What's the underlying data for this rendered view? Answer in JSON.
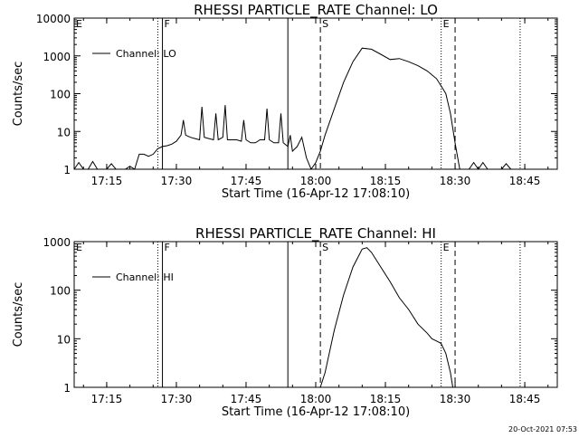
{
  "stamp": "20-Oct-2021 07:53",
  "colors": {
    "background": "#ffffff",
    "ink": "#000000"
  },
  "chart_data": [
    {
      "type": "line",
      "title": "RHESSI PARTICLE_RATE Channel: LO",
      "xlabel": "Start Time (16-Apr-12 17:08:10)",
      "ylabel": "Counts/sec",
      "y_scale": "log",
      "xlim": [
        "17:08",
        "18:52"
      ],
      "ylim": [
        1,
        10000
      ],
      "x_ticks": [
        "17:15",
        "17:30",
        "17:45",
        "18:00",
        "18:15",
        "18:30",
        "18:45"
      ],
      "y_ticks": [
        "1",
        "10",
        "100",
        "1000",
        "10000"
      ],
      "grid": false,
      "legend": {
        "position": "top-left",
        "entries": [
          "Channel: LO"
        ]
      },
      "markers": [
        {
          "label": "E",
          "time": "17:08",
          "style": "solid"
        },
        {
          "label": "F",
          "time": "17:27",
          "style": "solid"
        },
        {
          "label": "",
          "time": "17:26",
          "style": "dotted"
        },
        {
          "label": "",
          "time": "17:54",
          "style": "solid"
        },
        {
          "label": "S",
          "time": "18:01",
          "style": "dashed"
        },
        {
          "label": "E",
          "time": "18:27",
          "style": "dotted"
        },
        {
          "label": "",
          "time": "18:30",
          "style": "dashed"
        },
        {
          "label": "",
          "time": "18:44",
          "style": "dotted"
        }
      ],
      "series": [
        {
          "name": "Channel: LO",
          "points": [
            [
              "17:08",
              1
            ],
            [
              "17:09",
              1.5
            ],
            [
              "17:10",
              1
            ],
            [
              "17:11",
              1
            ],
            [
              "17:12",
              1.6
            ],
            [
              "17:13",
              1
            ],
            [
              "17:15",
              1
            ],
            [
              "17:16",
              1.4
            ],
            [
              "17:17",
              1
            ],
            [
              "17:19",
              1
            ],
            [
              "17:20",
              1.2
            ],
            [
              "17:21",
              1
            ],
            [
              "17:22",
              2.5
            ],
            [
              "17:23",
              2.5
            ],
            [
              "17:24",
              2.2
            ],
            [
              "17:25",
              2.5
            ],
            [
              "17:26",
              3.5
            ],
            [
              "17:27",
              4
            ],
            [
              "17:28",
              4.2
            ],
            [
              "17:29",
              4.6
            ],
            [
              "17:30",
              5.5
            ],
            [
              "17:31",
              8
            ],
            [
              "17:31.5",
              20
            ],
            [
              "17:32",
              8
            ],
            [
              "17:33",
              7
            ],
            [
              "17:34",
              6.5
            ],
            [
              "17:35",
              6
            ],
            [
              "17:35.5",
              45
            ],
            [
              "17:36",
              7
            ],
            [
              "17:37",
              6.5
            ],
            [
              "17:38",
              6
            ],
            [
              "17:38.5",
              30
            ],
            [
              "17:39",
              6
            ],
            [
              "17:40",
              7
            ],
            [
              "17:40.5",
              50
            ],
            [
              "17:41",
              6
            ],
            [
              "17:42",
              6
            ],
            [
              "17:43",
              6
            ],
            [
              "17:44",
              5.5
            ],
            [
              "17:44.5",
              20
            ],
            [
              "17:45",
              6
            ],
            [
              "17:46",
              5
            ],
            [
              "17:47",
              5
            ],
            [
              "17:48",
              6
            ],
            [
              "17:49",
              6
            ],
            [
              "17:49.5",
              40
            ],
            [
              "17:50",
              6
            ],
            [
              "17:51",
              5
            ],
            [
              "17:52",
              5
            ],
            [
              "17:52.5",
              30
            ],
            [
              "17:53",
              5
            ],
            [
              "17:54",
              4
            ],
            [
              "17:54.5",
              8
            ],
            [
              "17:55",
              3
            ],
            [
              "17:56",
              4
            ],
            [
              "17:57",
              7
            ],
            [
              "17:58",
              2
            ],
            [
              "17:59",
              1
            ],
            [
              "18:00",
              1.5
            ],
            [
              "18:01",
              3
            ],
            [
              "18:02",
              8
            ],
            [
              "18:04",
              40
            ],
            [
              "18:06",
              200
            ],
            [
              "18:08",
              700
            ],
            [
              "18:10",
              1600
            ],
            [
              "18:12",
              1500
            ],
            [
              "18:14",
              1100
            ],
            [
              "18:16",
              800
            ],
            [
              "18:18",
              850
            ],
            [
              "18:20",
              700
            ],
            [
              "18:22",
              550
            ],
            [
              "18:24",
              400
            ],
            [
              "18:26",
              250
            ],
            [
              "18:27",
              160
            ],
            [
              "18:28",
              100
            ],
            [
              "18:29",
              30
            ],
            [
              "18:30",
              5
            ],
            [
              "18:31",
              1
            ],
            [
              "18:33",
              1
            ],
            [
              "18:34",
              1.5
            ],
            [
              "18:35",
              1
            ],
            [
              "18:36",
              1.5
            ],
            [
              "18:37",
              1
            ],
            [
              "18:40",
              1
            ],
            [
              "18:41",
              1.4
            ],
            [
              "18:42",
              1
            ]
          ]
        }
      ]
    },
    {
      "type": "line",
      "title": "RHESSI PARTICLE_RATE Channel: HI",
      "xlabel": "Start Time (16-Apr-12 17:08:10)",
      "ylabel": "Counts/sec",
      "y_scale": "log",
      "xlim": [
        "17:08",
        "18:52"
      ],
      "ylim": [
        1,
        1000
      ],
      "x_ticks": [
        "17:15",
        "17:30",
        "17:45",
        "18:00",
        "18:15",
        "18:30",
        "18:45"
      ],
      "y_ticks": [
        "1",
        "10",
        "100",
        "1000"
      ],
      "grid": false,
      "legend": {
        "position": "top-left",
        "entries": [
          "Channel: HI"
        ]
      },
      "markers": [
        {
          "label": "E",
          "time": "17:08",
          "style": "solid"
        },
        {
          "label": "F",
          "time": "17:27",
          "style": "solid"
        },
        {
          "label": "",
          "time": "17:26",
          "style": "dotted"
        },
        {
          "label": "",
          "time": "17:54",
          "style": "solid"
        },
        {
          "label": "S",
          "time": "18:01",
          "style": "dashed"
        },
        {
          "label": "E",
          "time": "18:27",
          "style": "dotted"
        },
        {
          "label": "",
          "time": "18:30",
          "style": "dashed"
        },
        {
          "label": "",
          "time": "18:44",
          "style": "dotted"
        }
      ],
      "series": [
        {
          "name": "Channel: HI",
          "points": [
            [
              "18:01",
              1
            ],
            [
              "18:02",
              2
            ],
            [
              "18:04",
              15
            ],
            [
              "18:06",
              80
            ],
            [
              "18:08",
              300
            ],
            [
              "18:10",
              700
            ],
            [
              "18:11",
              750
            ],
            [
              "18:12",
              600
            ],
            [
              "18:14",
              300
            ],
            [
              "18:16",
              150
            ],
            [
              "18:18",
              70
            ],
            [
              "18:20",
              40
            ],
            [
              "18:22",
              20
            ],
            [
              "18:24",
              13
            ],
            [
              "18:25",
              10
            ],
            [
              "18:26",
              9
            ],
            [
              "18:27",
              8
            ],
            [
              "18:28",
              5
            ],
            [
              "18:29",
              2
            ],
            [
              "18:29.5",
              1
            ]
          ]
        }
      ]
    }
  ]
}
